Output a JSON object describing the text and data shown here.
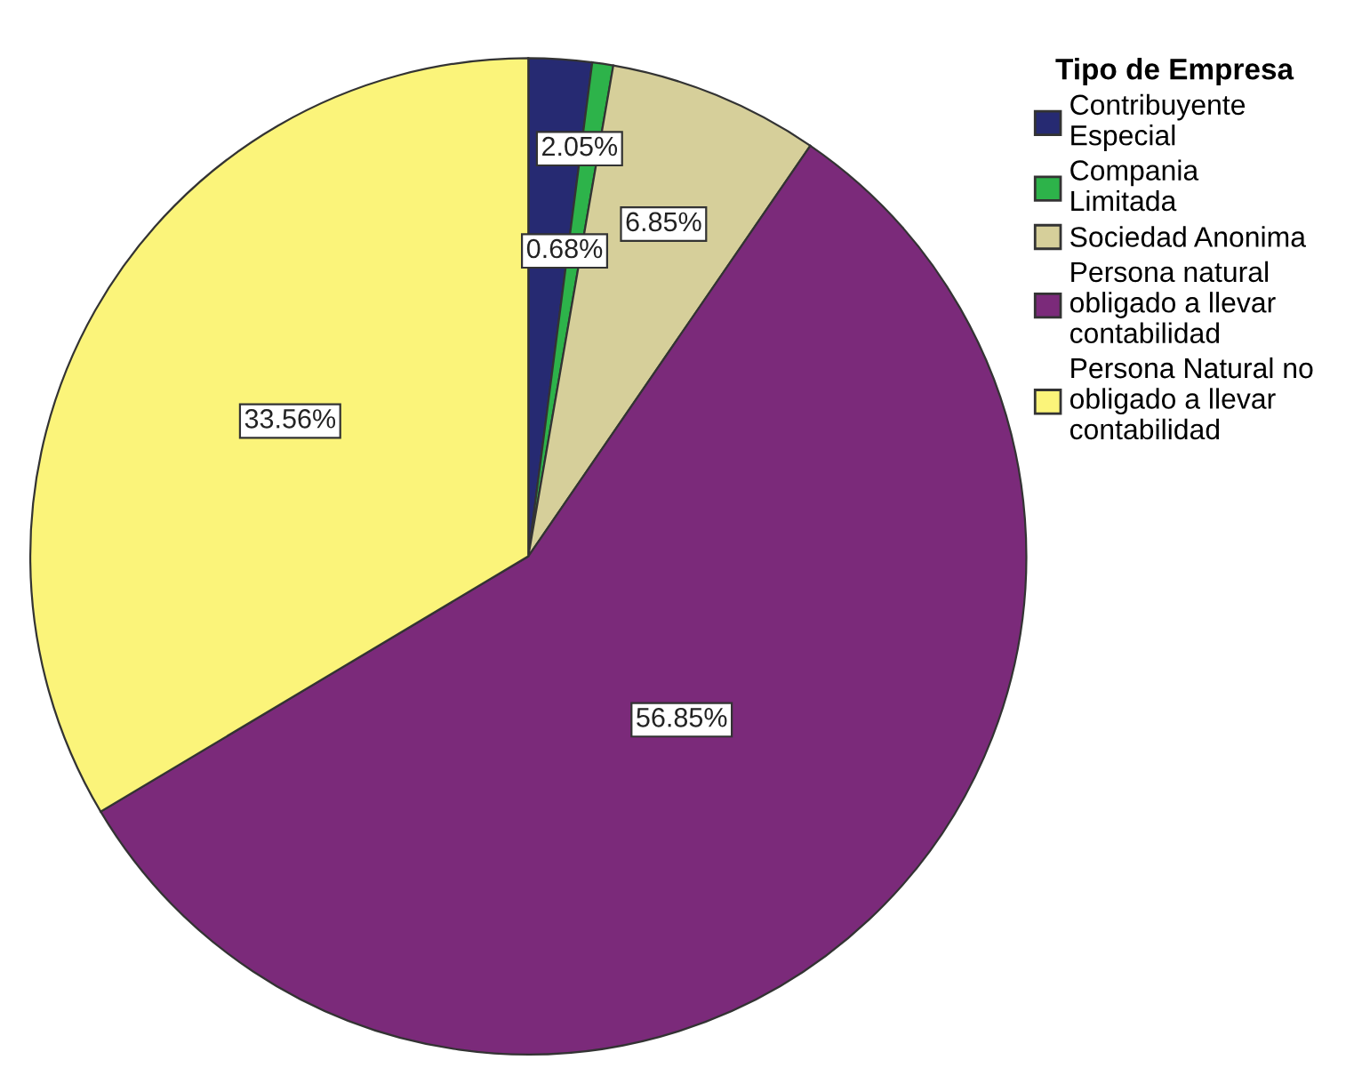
{
  "chart_data": {
    "type": "pie",
    "legend_title": "Tipo de Empresa",
    "legend": "top right",
    "categories": [
      "Contribuyente\nEspecial",
      "Compania\nLimitada",
      "Sociedad Anonima",
      "Persona natural\nobligado a llevar\ncontabilidad",
      "Persona Natural no\nobligado a llevar\ncontabilidad"
    ],
    "values": [
      2.05,
      0.68,
      6.85,
      56.85,
      33.56
    ],
    "colors": [
      "#262a72",
      "#2db34a",
      "#d6cf9a",
      "#7b2a7a",
      "#fbf47a"
    ],
    "value_labels": [
      "2.05%",
      "0.68%",
      "6.85%",
      "56.85%",
      "33.56%"
    ]
  }
}
